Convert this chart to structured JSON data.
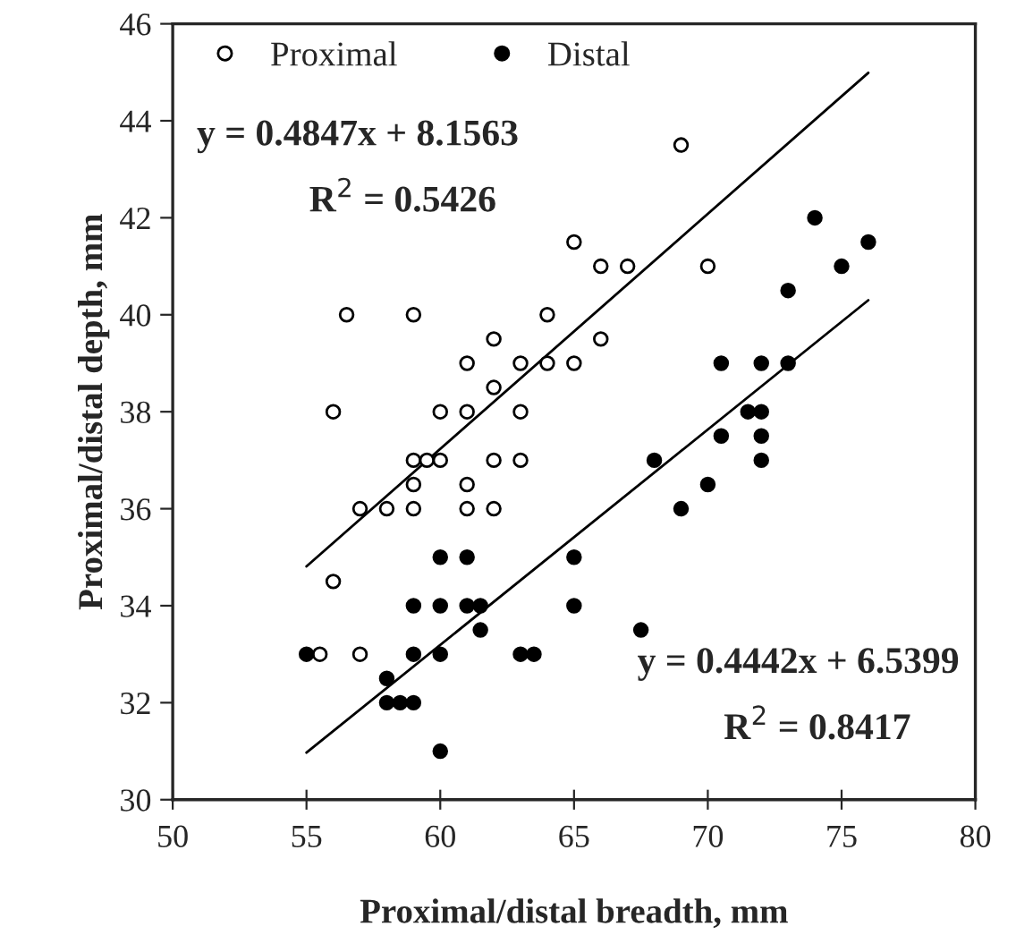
{
  "chart_data": {
    "type": "scatter",
    "xlabel": "Proximal/distal breadth, mm",
    "ylabel": "Proximal/distal depth, mm",
    "xlim": [
      50,
      80
    ],
    "xticks": [
      50,
      55,
      60,
      65,
      70,
      75,
      80
    ],
    "ylim": [
      30,
      46
    ],
    "yticks": [
      30,
      32,
      34,
      36,
      38,
      40,
      42,
      44,
      46
    ],
    "grid": false,
    "legend": "top left",
    "marker": "circle",
    "series": [
      {
        "name": "Proximal",
        "color": "#000000",
        "x": [
          69,
          65,
          66,
          67,
          70,
          64,
          64,
          65,
          66,
          56.5,
          59,
          62,
          61,
          63,
          62,
          56,
          60,
          61,
          63,
          59,
          59.5,
          60,
          62,
          63,
          59,
          61,
          57,
          58,
          59,
          61,
          62,
          56,
          55.5,
          57
        ],
        "values": [
          43.5,
          41.5,
          41,
          41,
          41,
          40,
          39,
          39,
          39.5,
          40,
          40,
          39.5,
          39,
          39,
          38.5,
          38,
          38,
          38,
          38,
          37,
          37,
          37,
          37,
          37,
          36.5,
          36.5,
          36,
          36,
          36,
          36,
          36,
          34.5,
          33,
          33
        ]
      },
      {
        "name": "Distal",
        "color": "#000000",
        "x": [
          55,
          60,
          61,
          65,
          59,
          60,
          61,
          61.5,
          65,
          61.5,
          59,
          60,
          63,
          63.5,
          58,
          58,
          58.5,
          59,
          60,
          74,
          76,
          75,
          73,
          70.5,
          72,
          73,
          71.5,
          72,
          70.5,
          72,
          72,
          68,
          70,
          69,
          67.5
        ],
        "values": [
          33,
          35,
          35,
          35,
          34,
          34,
          34,
          34,
          34,
          33.5,
          33,
          33,
          33,
          33,
          32.5,
          32,
          32,
          32,
          31,
          42,
          41.5,
          41,
          40.5,
          39,
          39,
          39,
          38,
          38,
          37.5,
          37.5,
          37,
          37,
          36.5,
          36,
          33.5
        ]
      },
      {
        "type": "line",
        "color": "#000000",
        "marker": "none",
        "line_style": "solid",
        "x": [
          55,
          76
        ],
        "values": [
          34.81,
          44.99
        ]
      },
      {
        "type": "line",
        "color": "#000000",
        "marker": "none",
        "line_style": "solid",
        "x": [
          55,
          76
        ],
        "values": [
          30.97,
          40.3
        ]
      }
    ],
    "annotations": [
      "y = 0.4847x + 8.1563",
      "R$^{2}$ = 0.5426",
      "y = 0.4442x + 6.5399",
      "R$^{2}$ = 0.8417"
    ]
  }
}
